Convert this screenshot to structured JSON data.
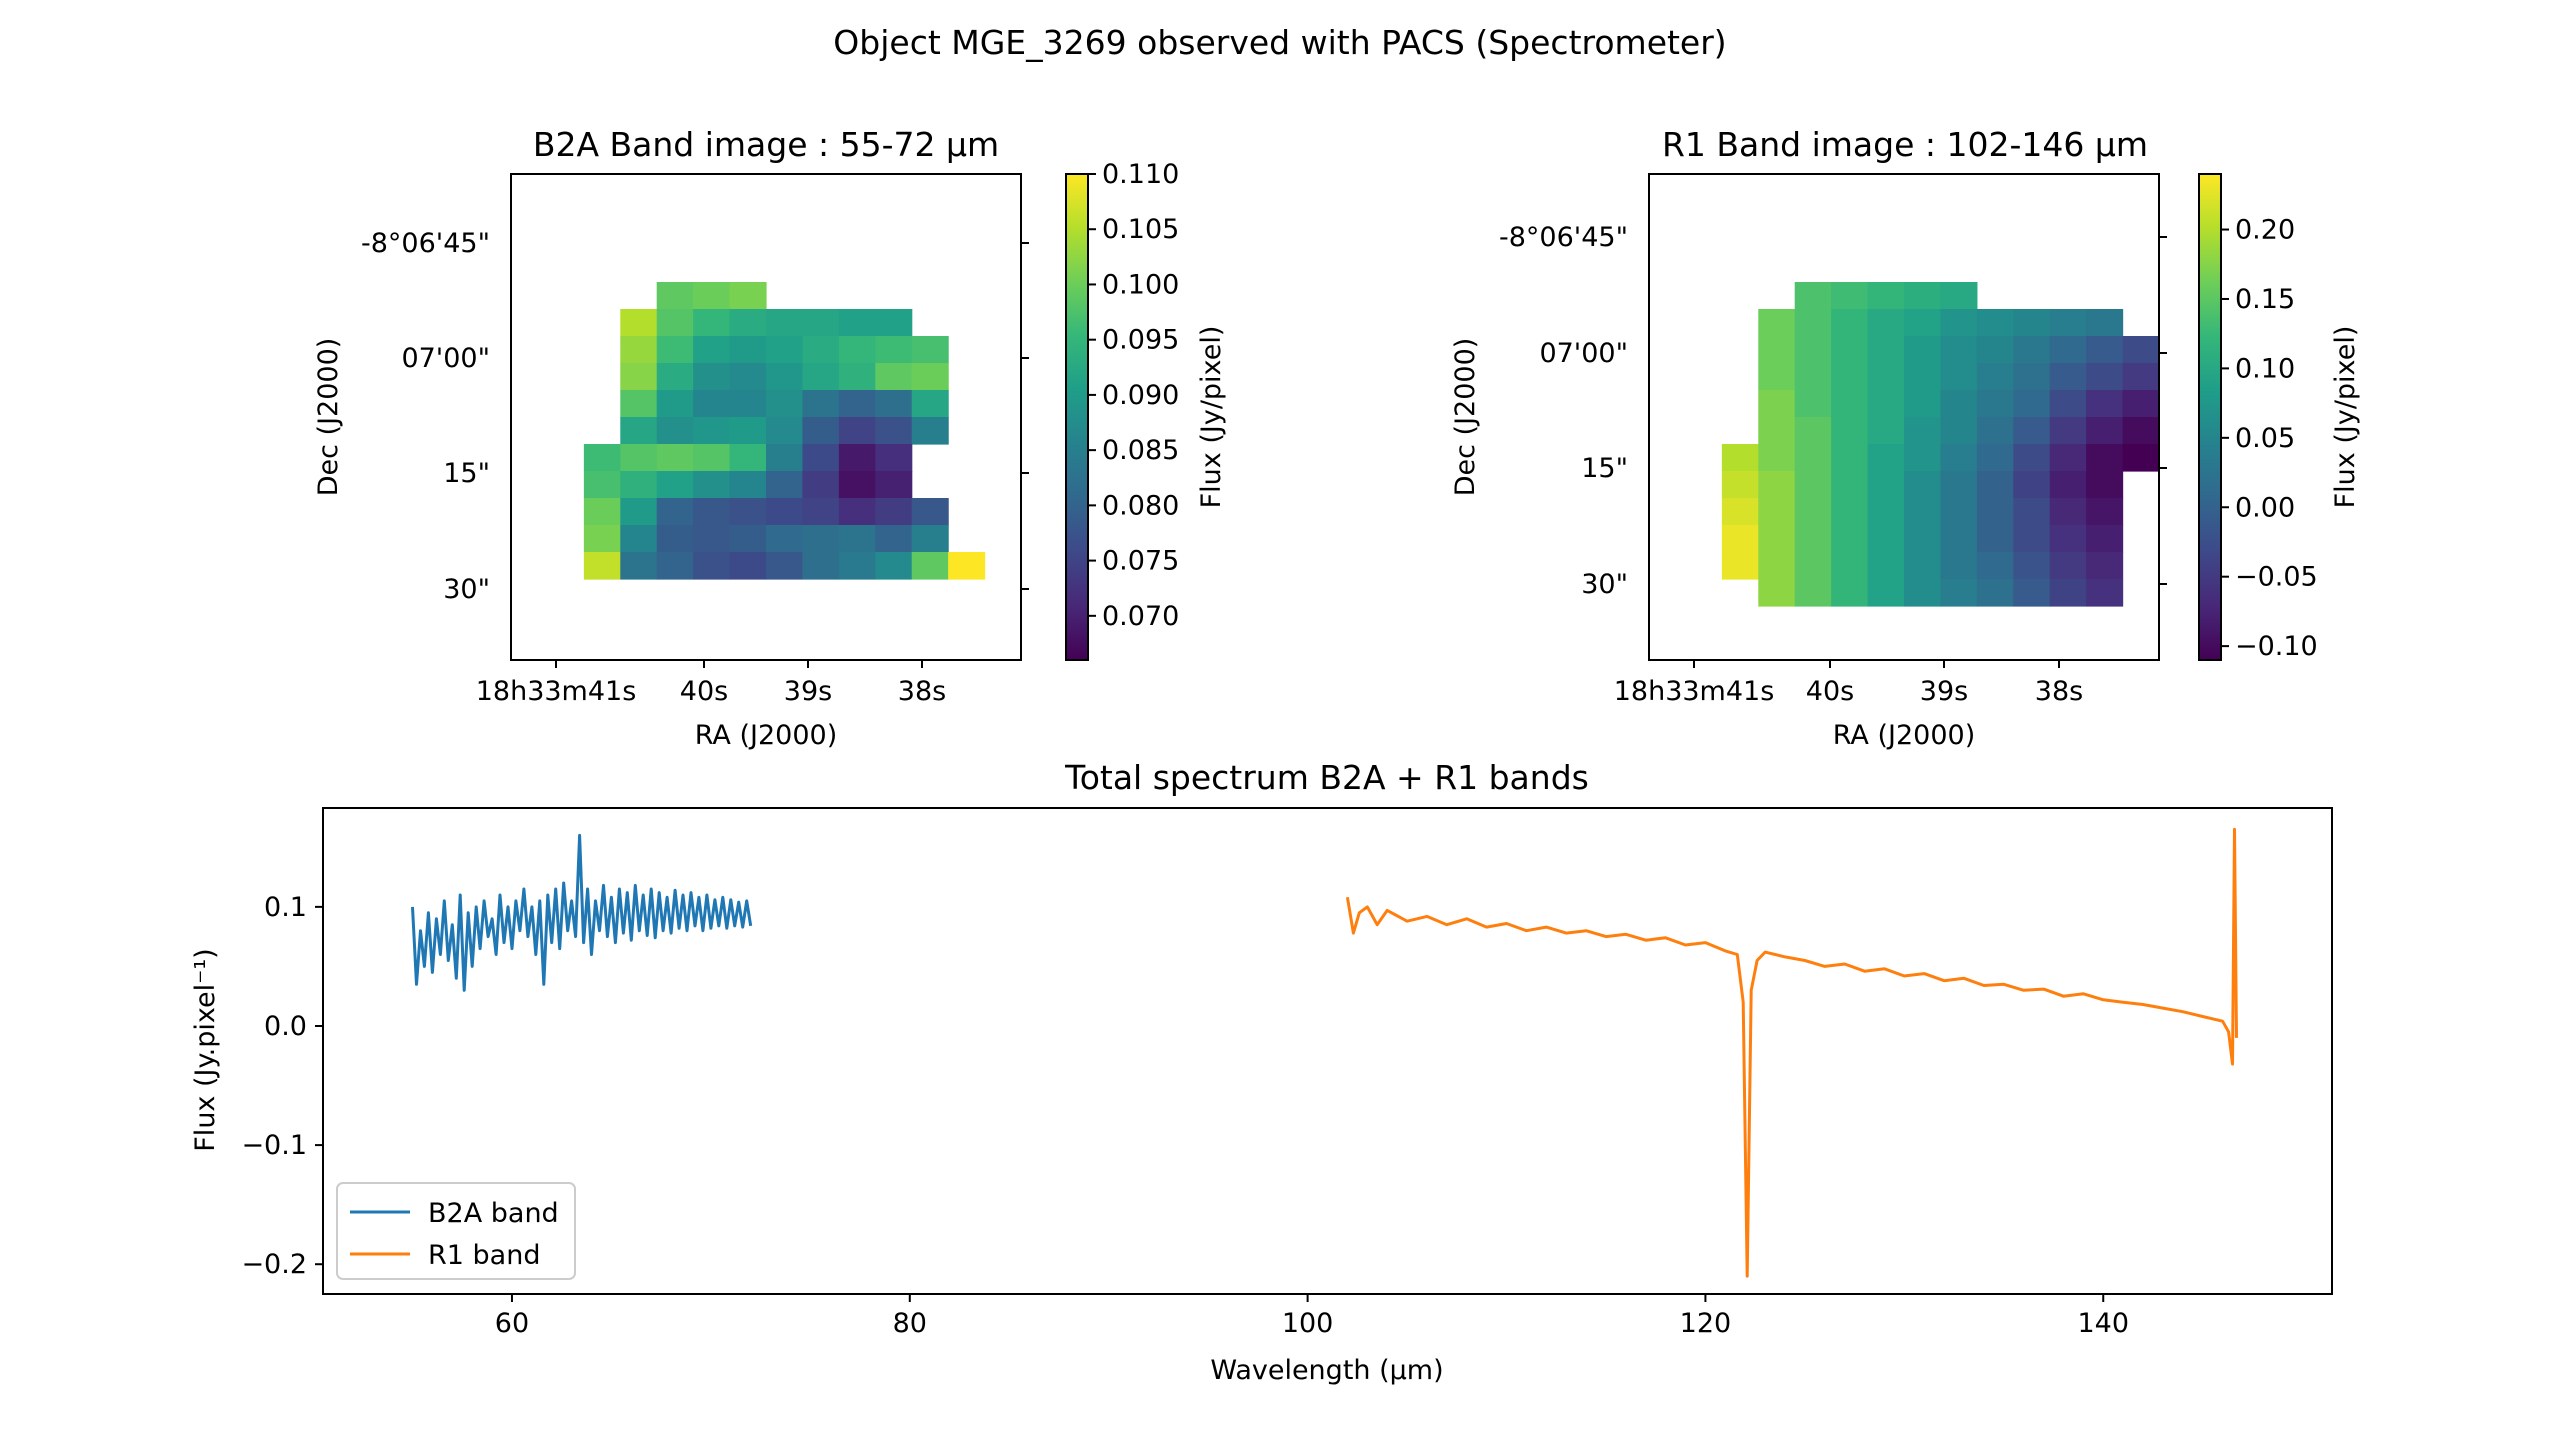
{
  "figure": {
    "title": "Object MGE_3269 observed with PACS (Spectrometer)"
  },
  "colors": {
    "b2a": "#1f77b4",
    "r1": "#ff7f0e",
    "viridis": [
      "#440154",
      "#482878",
      "#3e4989",
      "#31688e",
      "#26828e",
      "#1f9e89",
      "#35b779",
      "#6ece58",
      "#b5de2b",
      "#fde725"
    ]
  },
  "chart_data": [
    {
      "type": "heatmap",
      "title": "B2A Band image : 55-72 μm",
      "xlabel": "RA (J2000)",
      "ylabel": "Dec (J2000)",
      "x_ticks": [
        "18h33m41s",
        "40s",
        "39s",
        "38s"
      ],
      "y_ticks": [
        "-8°06'45\"",
        "07'00\"",
        "15\"",
        "30\""
      ],
      "colorbar": {
        "label": "Flux (Jy/pixel)",
        "range": [
          0.066,
          0.11
        ],
        "ticks": [
          "0.110",
          "0.105",
          "0.100",
          "0.095",
          "0.090",
          "0.085",
          "0.080",
          "0.075",
          "0.070"
        ],
        "tick_values": [
          0.11,
          0.105,
          0.1,
          0.095,
          0.09,
          0.085,
          0.08,
          0.075,
          0.07
        ]
      },
      "grid": [
        [
          null,
          null,
          null,
          null,
          null,
          null,
          null,
          null,
          null,
          null,
          null,
          null,
          null,
          null
        ],
        [
          null,
          null,
          null,
          null,
          null,
          null,
          null,
          null,
          null,
          null,
          null,
          null,
          null,
          null
        ],
        [
          null,
          null,
          null,
          null,
          null,
          null,
          null,
          null,
          null,
          null,
          null,
          null,
          null,
          null
        ],
        [
          null,
          null,
          null,
          null,
          null,
          null,
          null,
          null,
          null,
          null,
          null,
          null,
          null,
          null
        ],
        [
          null,
          null,
          null,
          null,
          0.099,
          0.1,
          0.101,
          null,
          null,
          null,
          null,
          null,
          null,
          null
        ],
        [
          null,
          null,
          null,
          0.105,
          0.098,
          0.095,
          0.093,
          0.092,
          0.092,
          0.091,
          0.091,
          null,
          null,
          null
        ],
        [
          null,
          null,
          null,
          0.103,
          0.096,
          0.091,
          0.09,
          0.091,
          0.093,
          0.095,
          0.096,
          0.097,
          null,
          null
        ],
        [
          null,
          null,
          null,
          0.102,
          0.093,
          0.088,
          0.087,
          0.089,
          0.092,
          0.094,
          0.099,
          0.1,
          null,
          null
        ],
        [
          null,
          null,
          null,
          0.098,
          0.09,
          0.086,
          0.086,
          0.088,
          0.083,
          0.08,
          0.082,
          0.092,
          null,
          null
        ],
        [
          null,
          null,
          null,
          0.092,
          0.088,
          0.089,
          0.09,
          0.087,
          0.079,
          0.075,
          0.077,
          0.085,
          null,
          null
        ],
        [
          null,
          null,
          0.096,
          0.098,
          0.099,
          0.098,
          0.095,
          0.085,
          0.076,
          0.069,
          0.072,
          null,
          null,
          null
        ],
        [
          null,
          null,
          0.097,
          0.094,
          0.091,
          0.088,
          0.086,
          0.08,
          0.074,
          0.068,
          0.07,
          null,
          null,
          null
        ],
        [
          null,
          null,
          0.1,
          0.09,
          0.08,
          0.078,
          0.077,
          0.076,
          0.075,
          0.072,
          0.074,
          0.078,
          null,
          null
        ],
        [
          null,
          null,
          0.101,
          0.086,
          0.079,
          0.078,
          0.079,
          0.081,
          0.082,
          0.083,
          0.08,
          0.085,
          null,
          null
        ],
        [
          null,
          null,
          0.106,
          0.083,
          0.08,
          0.077,
          0.076,
          0.078,
          0.082,
          0.084,
          0.087,
          0.099,
          0.11,
          null
        ],
        [
          null,
          null,
          null,
          null,
          null,
          null,
          null,
          null,
          null,
          null,
          null,
          null,
          null,
          null
        ],
        [
          null,
          null,
          null,
          null,
          null,
          null,
          null,
          null,
          null,
          null,
          null,
          null,
          null,
          null
        ],
        [
          null,
          null,
          null,
          null,
          null,
          null,
          null,
          null,
          null,
          null,
          null,
          null,
          null,
          null
        ]
      ]
    },
    {
      "type": "heatmap",
      "title": "R1 Band image : 102-146 μm",
      "xlabel": "RA (J2000)",
      "ylabel": "Dec (J2000)",
      "x_ticks": [
        "18h33m41s",
        "40s",
        "39s",
        "38s"
      ],
      "y_ticks": [
        "-8°06'45\"",
        "07'00\"",
        "15\"",
        "30\""
      ],
      "colorbar": {
        "label": "Flux (Jy/pixel)",
        "range": [
          -0.11,
          0.24
        ],
        "ticks": [
          "0.20",
          "0.15",
          "0.10",
          "0.05",
          "0.00",
          "−0.05",
          "−0.10"
        ],
        "tick_values": [
          0.2,
          0.15,
          0.1,
          0.05,
          0.0,
          -0.05,
          -0.1
        ]
      },
      "grid": [
        [
          null,
          null,
          null,
          null,
          null,
          null,
          null,
          null,
          null,
          null,
          null,
          null,
          null,
          null
        ],
        [
          null,
          null,
          null,
          null,
          null,
          null,
          null,
          null,
          null,
          null,
          null,
          null,
          null,
          null
        ],
        [
          null,
          null,
          null,
          null,
          null,
          null,
          null,
          null,
          null,
          null,
          null,
          null,
          null,
          null
        ],
        [
          null,
          null,
          null,
          null,
          null,
          null,
          null,
          null,
          null,
          null,
          null,
          null,
          null,
          null
        ],
        [
          null,
          null,
          null,
          null,
          0.14,
          0.13,
          0.12,
          0.11,
          0.1,
          null,
          null,
          null,
          null,
          null
        ],
        [
          null,
          null,
          null,
          0.16,
          0.14,
          0.12,
          0.1,
          0.09,
          0.07,
          0.06,
          0.05,
          0.04,
          0.03,
          null
        ],
        [
          null,
          null,
          null,
          0.16,
          0.14,
          0.12,
          0.1,
          0.08,
          0.06,
          0.05,
          0.03,
          0.01,
          -0.01,
          -0.03
        ],
        [
          null,
          null,
          null,
          0.16,
          0.14,
          0.12,
          0.1,
          0.08,
          0.06,
          0.04,
          0.02,
          -0.01,
          -0.03,
          -0.05
        ],
        [
          null,
          null,
          null,
          0.17,
          0.14,
          0.12,
          0.1,
          0.08,
          0.05,
          0.03,
          0.01,
          -0.03,
          -0.06,
          -0.08
        ],
        [
          null,
          null,
          null,
          0.17,
          0.15,
          0.12,
          0.1,
          0.07,
          0.05,
          0.02,
          -0.01,
          -0.05,
          -0.08,
          -0.1
        ],
        [
          null,
          null,
          0.2,
          0.17,
          0.15,
          0.12,
          0.09,
          0.07,
          0.04,
          0.01,
          -0.03,
          -0.07,
          -0.1,
          -0.11
        ],
        [
          null,
          null,
          0.21,
          0.18,
          0.15,
          0.12,
          0.09,
          0.06,
          0.03,
          0.0,
          -0.04,
          -0.08,
          -0.1,
          null
        ],
        [
          null,
          null,
          0.22,
          0.18,
          0.15,
          0.12,
          0.09,
          0.06,
          0.03,
          0.0,
          -0.03,
          -0.07,
          -0.09,
          null
        ],
        [
          null,
          null,
          0.23,
          0.18,
          0.15,
          0.12,
          0.09,
          0.06,
          0.03,
          0.0,
          -0.03,
          -0.06,
          -0.08,
          null
        ],
        [
          null,
          null,
          0.23,
          0.18,
          0.15,
          0.12,
          0.09,
          0.06,
          0.03,
          0.01,
          -0.02,
          -0.05,
          -0.07,
          null
        ],
        [
          null,
          null,
          null,
          0.18,
          0.15,
          0.12,
          0.09,
          0.06,
          0.04,
          0.02,
          -0.01,
          -0.04,
          -0.06,
          null
        ],
        [
          null,
          null,
          null,
          null,
          null,
          null,
          null,
          null,
          null,
          null,
          null,
          null,
          null,
          null
        ],
        [
          null,
          null,
          null,
          null,
          null,
          null,
          null,
          null,
          null,
          null,
          null,
          null,
          null,
          null
        ]
      ]
    },
    {
      "type": "line",
      "title": "Total spectrum B2A + R1 bands",
      "xlabel": "Wavelength (μm)",
      "ylabel": "Flux (Jy.pixel⁻¹)",
      "xlim": [
        50.5,
        151.5
      ],
      "ylim": [
        -0.225,
        0.183
      ],
      "x_ticks": [
        60,
        80,
        100,
        120,
        140
      ],
      "y_ticks": [
        {
          "value": 0.1,
          "label": "0.1"
        },
        {
          "value": 0.0,
          "label": "0.0"
        },
        {
          "value": -0.1,
          "label": "−0.1"
        },
        {
          "value": -0.2,
          "label": "−0.2"
        }
      ],
      "legend": {
        "position": "lower-left",
        "entries": [
          "B2A band",
          "R1 band"
        ]
      },
      "series": [
        {
          "name": "B2A band",
          "x": [
            55.0,
            55.2,
            55.4,
            55.6,
            55.8,
            56.0,
            56.2,
            56.4,
            56.6,
            56.8,
            57.0,
            57.2,
            57.4,
            57.6,
            57.8,
            58.0,
            58.2,
            58.4,
            58.6,
            58.8,
            59.0,
            59.2,
            59.4,
            59.6,
            59.8,
            60.0,
            60.2,
            60.4,
            60.6,
            60.8,
            61.0,
            61.2,
            61.4,
            61.6,
            61.8,
            62.0,
            62.2,
            62.4,
            62.6,
            62.8,
            63.0,
            63.2,
            63.4,
            63.6,
            63.8,
            64.0,
            64.2,
            64.4,
            64.6,
            64.8,
            65.0,
            65.2,
            65.4,
            65.6,
            65.8,
            66.0,
            66.2,
            66.4,
            66.6,
            66.8,
            67.0,
            67.2,
            67.4,
            67.6,
            67.8,
            68.0,
            68.2,
            68.4,
            68.6,
            68.8,
            69.0,
            69.2,
            69.4,
            69.6,
            69.8,
            70.0,
            70.2,
            70.4,
            70.6,
            70.8,
            71.0,
            71.2,
            71.4,
            71.6,
            71.8,
            72.0
          ],
          "y": [
            0.1,
            0.035,
            0.08,
            0.05,
            0.095,
            0.045,
            0.09,
            0.06,
            0.105,
            0.055,
            0.085,
            0.04,
            0.11,
            0.03,
            0.095,
            0.05,
            0.1,
            0.065,
            0.105,
            0.075,
            0.09,
            0.06,
            0.11,
            0.07,
            0.1,
            0.065,
            0.105,
            0.08,
            0.115,
            0.075,
            0.1,
            0.06,
            0.105,
            0.035,
            0.11,
            0.07,
            0.115,
            0.065,
            0.12,
            0.08,
            0.105,
            0.075,
            0.16,
            0.07,
            0.115,
            0.06,
            0.105,
            0.08,
            0.118,
            0.075,
            0.108,
            0.07,
            0.115,
            0.078,
            0.112,
            0.072,
            0.118,
            0.08,
            0.11,
            0.076,
            0.115,
            0.074,
            0.112,
            0.08,
            0.108,
            0.078,
            0.114,
            0.082,
            0.11,
            0.08,
            0.112,
            0.084,
            0.108,
            0.08,
            0.11,
            0.082,
            0.106,
            0.084,
            0.108,
            0.082,
            0.106,
            0.084,
            0.104,
            0.083,
            0.105,
            0.084
          ]
        },
        {
          "name": "R1 band",
          "x": [
            102.0,
            102.3,
            102.6,
            103.0,
            103.5,
            104.0,
            105.0,
            106.0,
            107.0,
            108.0,
            109.0,
            110.0,
            111.0,
            112.0,
            113.0,
            114.0,
            115.0,
            116.0,
            117.0,
            118.0,
            119.0,
            120.0,
            121.0,
            121.6,
            121.9,
            122.1,
            122.3,
            122.6,
            123.0,
            124.0,
            125.0,
            126.0,
            127.0,
            128.0,
            129.0,
            130.0,
            131.0,
            132.0,
            133.0,
            134.0,
            135.0,
            136.0,
            137.0,
            138.0,
            139.0,
            140.0,
            141.0,
            142.0,
            143.0,
            144.0,
            145.0,
            146.0,
            146.3,
            146.5,
            146.6,
            146.7
          ],
          "y": [
            0.108,
            0.078,
            0.095,
            0.1,
            0.085,
            0.097,
            0.088,
            0.092,
            0.085,
            0.09,
            0.083,
            0.086,
            0.08,
            0.083,
            0.078,
            0.08,
            0.075,
            0.077,
            0.072,
            0.074,
            0.068,
            0.07,
            0.063,
            0.06,
            0.02,
            -0.21,
            0.03,
            0.055,
            0.062,
            0.058,
            0.055,
            0.05,
            0.052,
            0.046,
            0.048,
            0.042,
            0.044,
            0.038,
            0.04,
            0.034,
            0.035,
            0.03,
            0.031,
            0.025,
            0.027,
            0.022,
            0.02,
            0.018,
            0.015,
            0.012,
            0.008,
            0.004,
            -0.005,
            -0.032,
            0.165,
            -0.01
          ]
        }
      ]
    }
  ]
}
